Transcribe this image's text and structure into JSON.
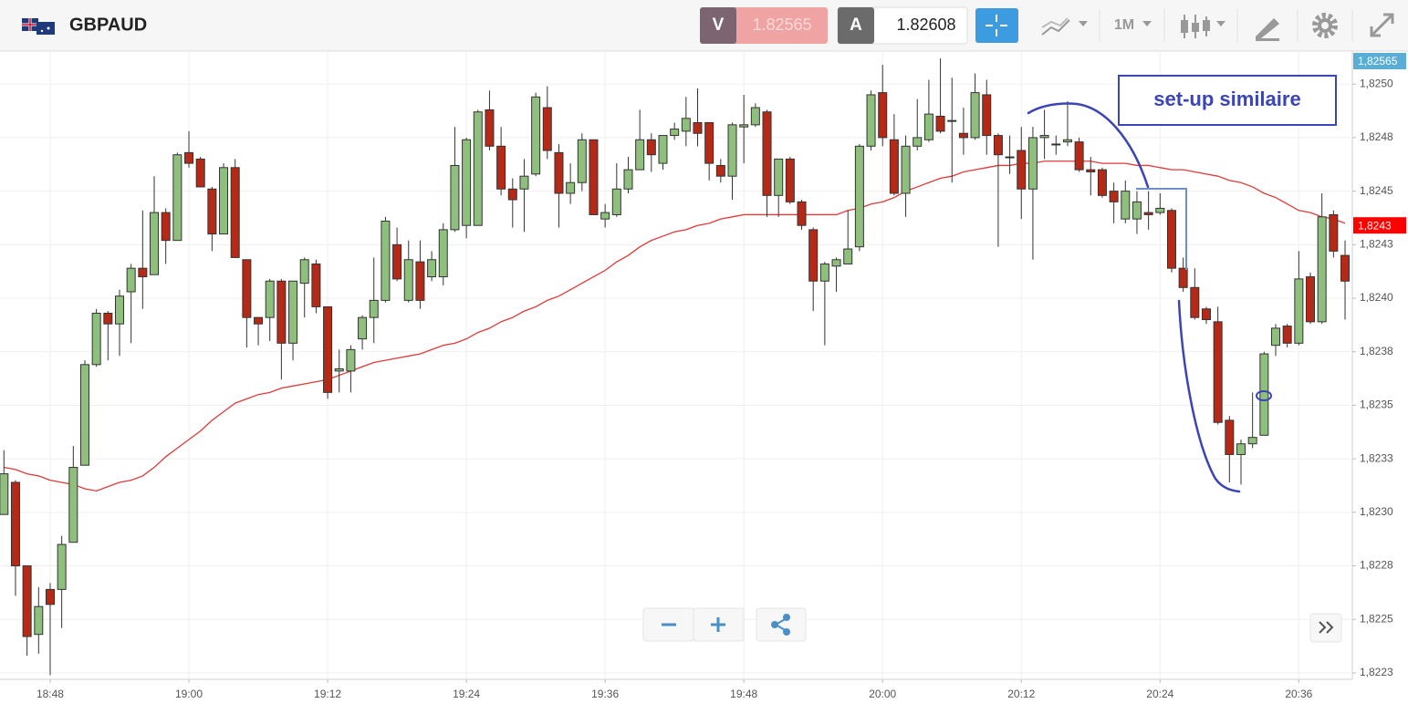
{
  "toolbar": {
    "symbol": "GBPAUD",
    "bid_label": "V",
    "bid": 1.82565,
    "ask_label": "A",
    "ask": 1.82608,
    "timeframe": "1M"
  },
  "chart_data": {
    "type": "candlestick",
    "categories": [
      null,
      null,
      null,
      null,
      "18:48",
      null,
      null,
      null,
      null,
      null,
      null,
      null,
      null,
      null,
      null,
      null,
      "19:00",
      null,
      null,
      null,
      null,
      null,
      null,
      null,
      null,
      null,
      null,
      null,
      "19:12",
      null,
      null,
      null,
      null,
      null,
      null,
      null,
      null,
      null,
      null,
      null,
      "19:24",
      null,
      null,
      null,
      null,
      null,
      null,
      null,
      null,
      null,
      null,
      null,
      "19:36",
      null,
      null,
      null,
      null,
      null,
      null,
      null,
      null,
      null,
      null,
      null,
      "19:48",
      null,
      null,
      null,
      null,
      null,
      null,
      null,
      null,
      null,
      null,
      null,
      "20:00",
      null,
      null,
      null,
      null,
      null,
      null,
      null,
      null,
      null,
      null,
      null,
      "20:12",
      null,
      null,
      null,
      null,
      null,
      null,
      null,
      null,
      null,
      null,
      null,
      "20:24",
      null,
      null,
      null,
      null,
      null,
      null,
      null,
      null,
      null,
      null,
      null,
      "20:36",
      null,
      null,
      null,
      null
    ],
    "ohlc": [
      [
        1.82299,
        1.82329,
        1.82299,
        1.82318
      ],
      [
        1.82314,
        1.82315,
        1.82261,
        1.82275
      ],
      [
        1.82275,
        1.82275,
        1.82233,
        1.82242
      ],
      [
        1.82243,
        1.82265,
        1.82234,
        1.82256
      ],
      [
        1.82264,
        1.82267,
        1.82224,
        1.82257
      ],
      [
        1.82264,
        1.82289,
        1.82246,
        1.82285
      ],
      [
        1.82286,
        1.82331,
        1.82286,
        1.82321
      ],
      [
        1.82322,
        1.82371,
        1.82322,
        1.82369
      ],
      [
        1.82369,
        1.82395,
        1.82368,
        1.82393
      ],
      [
        1.82393,
        1.82394,
        1.82371,
        1.82388
      ],
      [
        1.82388,
        1.82404,
        1.82373,
        1.82401
      ],
      [
        1.82403,
        1.82416,
        1.82379,
        1.82414
      ],
      [
        1.82414,
        1.82441,
        1.82395,
        1.8241
      ],
      [
        1.82411,
        1.82457,
        1.82411,
        1.8244
      ],
      [
        1.8244,
        1.82442,
        1.82416,
        1.82427
      ],
      [
        1.82427,
        1.82468,
        1.82427,
        1.82467
      ],
      [
        1.82468,
        1.82478,
        1.82461,
        1.82463
      ],
      [
        1.82465,
        1.82466,
        1.82452,
        1.82452
      ],
      [
        1.82451,
        1.82452,
        1.82422,
        1.8243
      ],
      [
        1.8243,
        1.82463,
        1.8243,
        1.82461
      ],
      [
        1.82461,
        1.82465,
        1.82419,
        1.82419
      ],
      [
        1.82418,
        1.82418,
        1.82377,
        1.82391
      ],
      [
        1.82391,
        1.82391,
        1.82378,
        1.82388
      ],
      [
        1.82391,
        1.82409,
        1.8238,
        1.82408
      ],
      [
        1.82408,
        1.82409,
        1.82362,
        1.82379
      ],
      [
        1.82379,
        1.82408,
        1.82371,
        1.82408
      ],
      [
        1.82407,
        1.82419,
        1.82391,
        1.82418
      ],
      [
        1.82416,
        1.82418,
        1.82393,
        1.82396
      ],
      [
        1.82396,
        1.82396,
        1.82353,
        1.82356
      ],
      [
        1.82366,
        1.82376,
        1.82356,
        1.82367
      ],
      [
        1.82366,
        1.82378,
        1.82356,
        1.82376
      ],
      [
        1.82381,
        1.82392,
        1.82376,
        1.82391
      ],
      [
        1.82391,
        1.82419,
        1.82379,
        1.82399
      ],
      [
        1.82399,
        1.82438,
        1.82398,
        1.82436
      ],
      [
        1.82425,
        1.82433,
        1.82408,
        1.82409
      ],
      [
        1.82399,
        1.82427,
        1.82398,
        1.82418
      ],
      [
        1.82417,
        1.82427,
        1.82395,
        1.82399
      ],
      [
        1.8241,
        1.82422,
        1.82408,
        1.82418
      ],
      [
        1.8241,
        1.82435,
        1.82406,
        1.82432
      ],
      [
        1.82432,
        1.8248,
        1.82431,
        1.82462
      ],
      [
        1.82434,
        1.82475,
        1.82428,
        1.82474
      ],
      [
        1.82434,
        1.82488,
        1.82434,
        1.82487
      ],
      [
        1.82488,
        1.82497,
        1.82469,
        1.82471
      ],
      [
        1.82471,
        1.8248,
        1.82448,
        1.82451
      ],
      [
        1.82451,
        1.82456,
        1.82433,
        1.82446
      ],
      [
        1.82451,
        1.82465,
        1.82431,
        1.82457
      ],
      [
        1.82458,
        1.82496,
        1.82457,
        1.82494
      ],
      [
        1.82489,
        1.82499,
        1.82465,
        1.82469
      ],
      [
        1.82468,
        1.82472,
        1.82433,
        1.82449
      ],
      [
        1.82449,
        1.82463,
        1.82444,
        1.82454
      ],
      [
        1.82454,
        1.82477,
        1.8245,
        1.82474
      ],
      [
        1.82474,
        1.82474,
        1.82439,
        1.82439
      ],
      [
        1.82437,
        1.82444,
        1.82433,
        1.8244
      ],
      [
        1.82439,
        1.82463,
        1.82438,
        1.82451
      ],
      [
        1.82451,
        1.82466,
        1.82449,
        1.8246
      ],
      [
        1.8246,
        1.82488,
        1.8246,
        1.82474
      ],
      [
        1.82474,
        1.82477,
        1.82459,
        1.82467
      ],
      [
        1.82463,
        1.82476,
        1.8246,
        1.82476
      ],
      [
        1.82476,
        1.82482,
        1.82474,
        1.82479
      ],
      [
        1.82478,
        1.82494,
        1.82471,
        1.82484
      ],
      [
        1.82482,
        1.82498,
        1.82471,
        1.82477
      ],
      [
        1.82482,
        1.82482,
        1.82455,
        1.82463
      ],
      [
        1.82462,
        1.82465,
        1.82454,
        1.82457
      ],
      [
        1.82457,
        1.82482,
        1.82446,
        1.82481
      ],
      [
        1.8248,
        1.82495,
        1.82463,
        1.82481
      ],
      [
        1.82481,
        1.82491,
        1.8248,
        1.82489
      ],
      [
        1.82487,
        1.82488,
        1.82438,
        1.82448
      ],
      [
        1.82448,
        1.82465,
        1.82438,
        1.82465
      ],
      [
        1.82465,
        1.82466,
        1.82444,
        1.82445
      ],
      [
        1.82445,
        1.82446,
        1.82432,
        1.82434
      ],
      [
        1.82432,
        1.82433,
        1.82394,
        1.82408
      ],
      [
        1.82408,
        1.82417,
        1.82378,
        1.82416
      ],
      [
        1.82415,
        1.82419,
        1.82403,
        1.82418
      ],
      [
        1.82416,
        1.82441,
        1.82416,
        1.82423
      ],
      [
        1.82424,
        1.82472,
        1.82422,
        1.82471
      ],
      [
        1.82471,
        1.82497,
        1.82469,
        1.82495
      ],
      [
        1.82496,
        1.82509,
        1.82471,
        1.82475
      ],
      [
        1.82474,
        1.82486,
        1.82448,
        1.82449
      ],
      [
        1.82449,
        1.82476,
        1.82438,
        1.82471
      ],
      [
        1.82471,
        1.82493,
        1.82469,
        1.82475
      ],
      [
        1.82474,
        1.82502,
        1.82473,
        1.82486
      ],
      [
        1.82485,
        1.82512,
        1.82477,
        1.82478
      ],
      [
        1.82483,
        1.82503,
        1.82454,
        1.82483
      ],
      [
        1.82477,
        1.82489,
        1.82467,
        1.82475
      ],
      [
        1.82475,
        1.82505,
        1.82474,
        1.82496
      ],
      [
        1.82495,
        1.82502,
        1.82467,
        1.82476
      ],
      [
        1.82476,
        1.82477,
        1.82424,
        1.82467
      ],
      [
        1.82466,
        1.82476,
        1.82458,
        1.82466
      ],
      [
        1.82469,
        1.8248,
        1.82437,
        1.82451
      ],
      [
        1.82451,
        1.8248,
        1.82418,
        1.82475
      ],
      [
        1.82475,
        1.82488,
        1.82465,
        1.82476
      ],
      [
        1.82472,
        1.82476,
        1.82467,
        1.82472
      ],
      [
        1.82473,
        1.82492,
        1.82471,
        1.82474
      ],
      [
        1.82473,
        1.82475,
        1.82459,
        1.8246
      ],
      [
        1.8246,
        1.82466,
        1.82448,
        1.82459
      ],
      [
        1.8246,
        1.82461,
        1.82447,
        1.82448
      ],
      [
        1.8245,
        1.82454,
        1.82435,
        1.82445
      ],
      [
        1.82437,
        1.82455,
        1.82435,
        1.8245
      ],
      [
        1.82437,
        1.8245,
        1.8243,
        1.82445
      ],
      [
        1.8244,
        1.8245,
        1.82432,
        1.82439
      ],
      [
        1.8244,
        1.82449,
        1.82439,
        1.82442
      ],
      [
        1.82441,
        1.82442,
        1.82412,
        1.82414
      ],
      [
        1.82414,
        1.82419,
        1.82403,
        1.82405
      ],
      [
        1.82405,
        1.82414,
        1.8239,
        1.82391
      ],
      [
        1.82395,
        1.82396,
        1.82388,
        1.8239
      ],
      [
        1.82389,
        1.82396,
        1.82341,
        1.82342
      ],
      [
        1.82343,
        1.82345,
        1.82314,
        1.82327
      ],
      [
        1.82327,
        1.82334,
        1.82313,
        1.82332
      ],
      [
        1.82332,
        1.82356,
        1.8233,
        1.82335
      ],
      [
        1.82336,
        1.82375,
        1.82336,
        1.82374
      ],
      [
        1.82378,
        1.82388,
        1.82373,
        1.82386
      ],
      [
        1.82387,
        1.82388,
        1.82377,
        1.82379
      ],
      [
        1.82379,
        1.82422,
        1.82378,
        1.82409
      ],
      [
        1.8241,
        1.82412,
        1.82388,
        1.82389
      ],
      [
        1.82389,
        1.82449,
        1.82388,
        1.82438
      ],
      [
        1.82439,
        1.82441,
        1.82419,
        1.82422
      ],
      [
        1.8242,
        1.82427,
        1.8239,
        1.82408
      ]
    ],
    "up_color": "#8fbf7c",
    "down_color": "#b52a17",
    "moving_average": {
      "color": "#e03a3a",
      "values": [
        1.82321,
        1.8232,
        1.82318,
        1.82317,
        1.82315,
        1.82314,
        1.82313,
        1.82311,
        1.8231,
        1.82312,
        1.82314,
        1.82315,
        1.82317,
        1.82321,
        1.82326,
        1.8233,
        1.82334,
        1.82338,
        1.82343,
        1.82347,
        1.82351,
        1.82353,
        1.82355,
        1.82356,
        1.82358,
        1.82359,
        1.8236,
        1.82361,
        1.82362,
        1.82364,
        1.82366,
        1.82368,
        1.8237,
        1.82371,
        1.82372,
        1.82373,
        1.82374,
        1.82376,
        1.82378,
        1.82379,
        1.82381,
        1.82384,
        1.82386,
        1.82389,
        1.82391,
        1.82394,
        1.82396,
        1.82399,
        1.82401,
        1.82404,
        1.82407,
        1.8241,
        1.82413,
        1.82417,
        1.8242,
        1.82424,
        1.82427,
        1.82429,
        1.82431,
        1.82432,
        1.82434,
        1.82435,
        1.82437,
        1.82438,
        1.82439,
        1.82439,
        1.82439,
        1.82439,
        1.82439,
        1.82439,
        1.82439,
        1.82439,
        1.82439,
        1.82441,
        1.82442,
        1.82444,
        1.82445,
        1.82447,
        1.8245,
        1.82452,
        1.82454,
        1.82456,
        1.82457,
        1.82459,
        1.8246,
        1.82461,
        1.82462,
        1.82462,
        1.82463,
        1.82463,
        1.82464,
        1.82464,
        1.82464,
        1.82464,
        1.82464,
        1.82463,
        1.82463,
        1.82463,
        1.82462,
        1.82462,
        1.82461,
        1.8246,
        1.8246,
        1.82459,
        1.82458,
        1.82457,
        1.82455,
        1.82454,
        1.82452,
        1.82449,
        1.82447,
        1.82444,
        1.82441,
        1.8244,
        1.82438,
        1.82437,
        1.82435
      ]
    },
    "ylim": [
      1.82222,
      1.82515
    ],
    "yticks": [
      {
        "value": 1.825,
        "label": "1,8250"
      },
      {
        "value": 1.82475,
        "label": "1,8248"
      },
      {
        "value": 1.8245,
        "label": "1,8245"
      },
      {
        "value": 1.82425,
        "label": "1,8243"
      },
      {
        "value": 1.824,
        "label": "1,8240"
      },
      {
        "value": 1.82375,
        "label": "1,8238"
      },
      {
        "value": 1.8235,
        "label": "1,8235"
      },
      {
        "value": 1.82325,
        "label": "1,8233"
      },
      {
        "value": 1.823,
        "label": "1,8230"
      },
      {
        "value": 1.82275,
        "label": "1,8228"
      },
      {
        "value": 1.8225,
        "label": "1,8225"
      },
      {
        "value": 1.82225,
        "label": "1,8223"
      }
    ],
    "grid": true,
    "bid_marker": {
      "value": 1.82565,
      "label": "1,82565",
      "color": "#5aaed6"
    },
    "last_marker": {
      "value": 1.82434,
      "label": "1,8243",
      "color": "#ff0000"
    },
    "annotation": "set-up similaire"
  }
}
